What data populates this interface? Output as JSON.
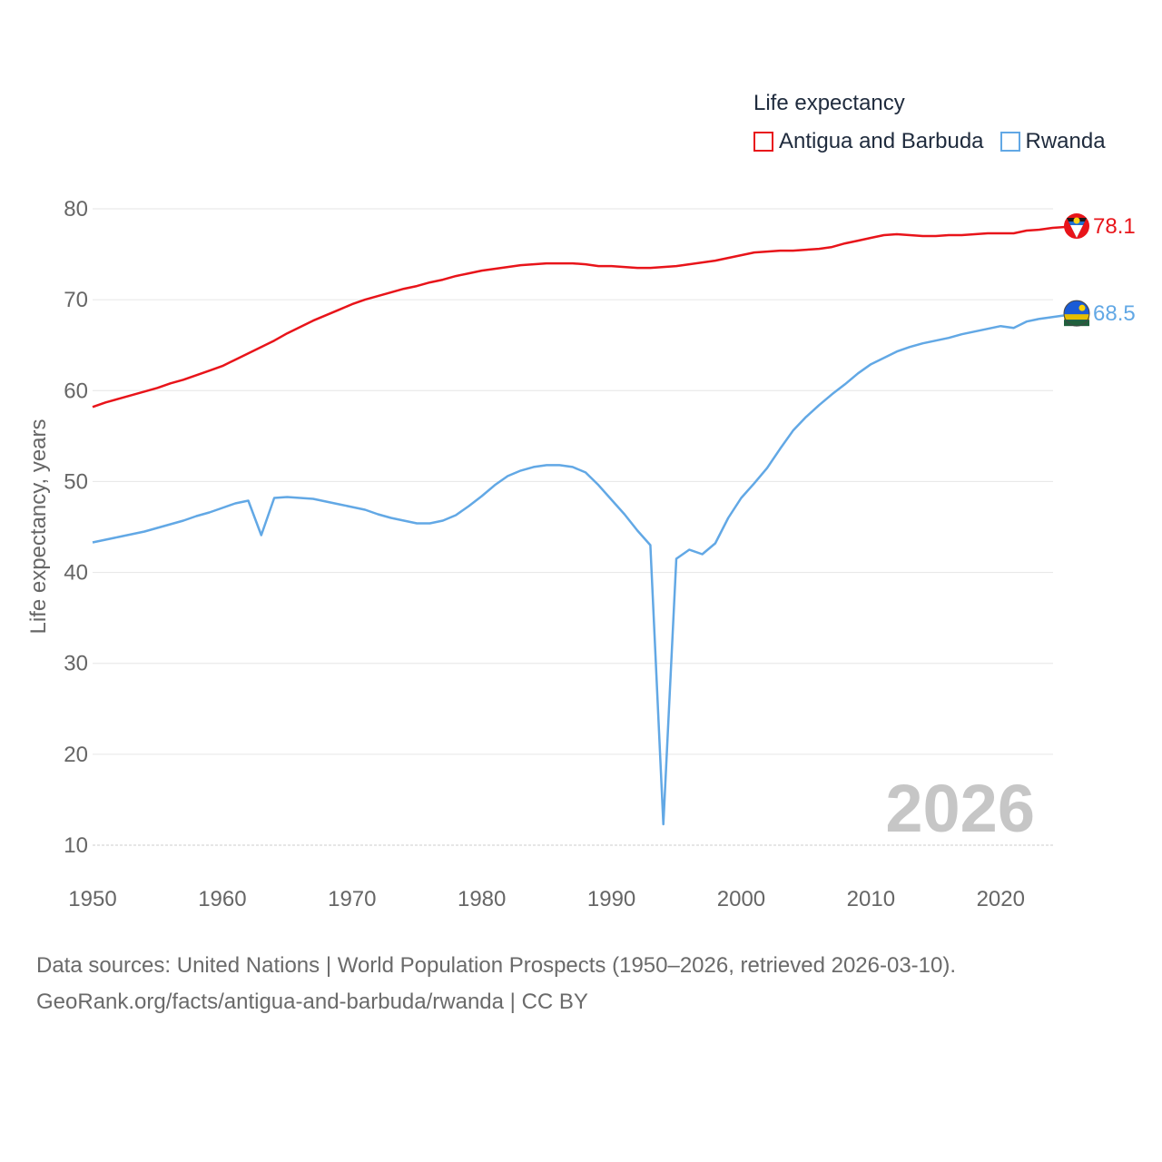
{
  "legend": {
    "title": "Life expectancy",
    "items": [
      {
        "label": "Antigua and Barbuda",
        "color": "#e8141a"
      },
      {
        "label": "Rwanda",
        "color": "#62a8e5"
      }
    ]
  },
  "year_watermark": "2026",
  "sources": {
    "line1": "Data sources: United Nations | World Population Prospects (1950–2026, retrieved 2026-03-10).",
    "line2": "GeoRank.org/facts/antigua-and-barbuda/rwanda | CC BY"
  },
  "chart_data": {
    "type": "line",
    "title": "Life expectancy",
    "xlabel": "",
    "ylabel": "Life expectancy, years",
    "xlim": [
      1950,
      2026
    ],
    "ylim": [
      10,
      80
    ],
    "xticks": [
      1950,
      1960,
      1970,
      1980,
      1990,
      2000,
      2010,
      2020
    ],
    "yticks": [
      10,
      20,
      30,
      40,
      50,
      60,
      70,
      80
    ],
    "grid": true,
    "legend_position": "top-right",
    "x": [
      1950,
      1951,
      1952,
      1953,
      1954,
      1955,
      1956,
      1957,
      1958,
      1959,
      1960,
      1961,
      1962,
      1963,
      1964,
      1965,
      1966,
      1967,
      1968,
      1969,
      1970,
      1971,
      1972,
      1973,
      1974,
      1975,
      1976,
      1977,
      1978,
      1979,
      1980,
      1981,
      1982,
      1983,
      1984,
      1985,
      1986,
      1987,
      1988,
      1989,
      1990,
      1991,
      1992,
      1993,
      1994,
      1995,
      1996,
      1997,
      1998,
      1999,
      2000,
      2001,
      2002,
      2003,
      2004,
      2005,
      2006,
      2007,
      2008,
      2009,
      2010,
      2011,
      2012,
      2013,
      2014,
      2015,
      2016,
      2017,
      2018,
      2019,
      2020,
      2021,
      2022,
      2023,
      2024,
      2025,
      2026
    ],
    "series": [
      {
        "name": "Antigua and Barbuda",
        "color": "#e8141a",
        "end_label": "78.1",
        "values": [
          58.2,
          58.7,
          59.1,
          59.5,
          59.9,
          60.3,
          60.8,
          61.2,
          61.7,
          62.2,
          62.7,
          63.4,
          64.1,
          64.8,
          65.5,
          66.3,
          67.0,
          67.7,
          68.3,
          68.9,
          69.5,
          70.0,
          70.4,
          70.8,
          71.2,
          71.5,
          71.9,
          72.2,
          72.6,
          72.9,
          73.2,
          73.4,
          73.6,
          73.8,
          73.9,
          74.0,
          74.0,
          74.0,
          73.9,
          73.7,
          73.7,
          73.6,
          73.5,
          73.5,
          73.6,
          73.7,
          73.9,
          74.1,
          74.3,
          74.6,
          74.9,
          75.2,
          75.3,
          75.4,
          75.4,
          75.5,
          75.6,
          75.8,
          76.2,
          76.5,
          76.8,
          77.1,
          77.2,
          77.1,
          77.0,
          77.0,
          77.1,
          77.1,
          77.2,
          77.3,
          77.3,
          77.3,
          77.6,
          77.7,
          77.9,
          78.0,
          78.1
        ]
      },
      {
        "name": "Rwanda",
        "color": "#62a8e5",
        "end_label": "68.5",
        "values": [
          43.3,
          43.6,
          43.9,
          44.2,
          44.5,
          44.9,
          45.3,
          45.7,
          46.2,
          46.6,
          47.1,
          47.6,
          47.9,
          44.1,
          48.2,
          48.3,
          48.2,
          48.1,
          47.8,
          47.5,
          47.2,
          46.9,
          46.4,
          46.0,
          45.7,
          45.4,
          45.4,
          45.7,
          46.3,
          47.3,
          48.4,
          49.6,
          50.6,
          51.2,
          51.6,
          51.8,
          51.8,
          51.6,
          51.0,
          49.6,
          48.0,
          46.4,
          44.6,
          43.0,
          12.3,
          41.5,
          42.5,
          42.0,
          43.2,
          46.0,
          48.2,
          49.8,
          51.5,
          53.6,
          55.6,
          57.1,
          58.4,
          59.6,
          60.7,
          61.9,
          62.9,
          63.6,
          64.3,
          64.8,
          65.2,
          65.5,
          65.8,
          66.2,
          66.5,
          66.8,
          67.1,
          66.9,
          67.6,
          67.9,
          68.1,
          68.3,
          68.5
        ]
      }
    ]
  }
}
